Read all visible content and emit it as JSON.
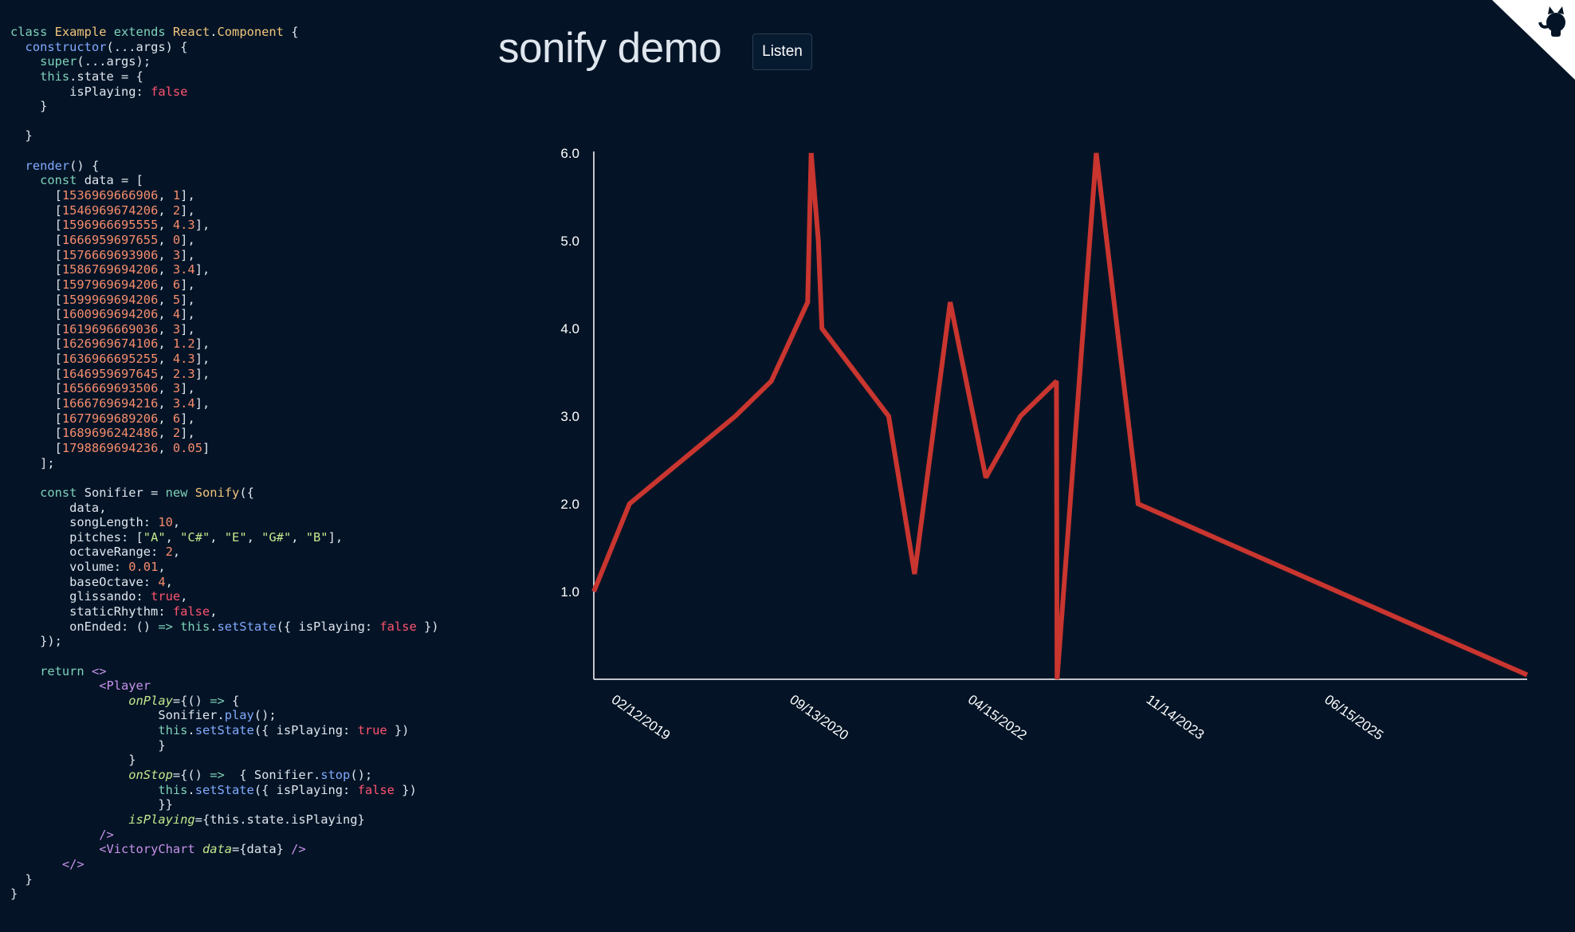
{
  "code": {
    "lines": [
      [
        [
          "class ",
          "kw"
        ],
        [
          "Example ",
          "cls"
        ],
        [
          "extends ",
          "kw"
        ],
        [
          "React",
          "cls"
        ],
        [
          ".",
          "plain"
        ],
        [
          "Component",
          "cls"
        ],
        [
          " {",
          "plain"
        ]
      ],
      [
        [
          "  ",
          "plain"
        ],
        [
          "constructor",
          "fn"
        ],
        [
          "(...args) {",
          "plain"
        ]
      ],
      [
        [
          "    ",
          "plain"
        ],
        [
          "super",
          "kw"
        ],
        [
          "(...args);",
          "plain"
        ]
      ],
      [
        [
          "    ",
          "plain"
        ],
        [
          "this",
          "kw"
        ],
        [
          ".state = {",
          "plain"
        ]
      ],
      [
        [
          "        isPlaying: ",
          "plain"
        ],
        [
          "false",
          "bool"
        ]
      ],
      [
        [
          "    }",
          "plain"
        ]
      ],
      [
        [
          "",
          "plain"
        ]
      ],
      [
        [
          "  }",
          "plain"
        ]
      ],
      [
        [
          "",
          "plain"
        ]
      ],
      [
        [
          "  ",
          "plain"
        ],
        [
          "render",
          "fn"
        ],
        [
          "() {",
          "plain"
        ]
      ],
      [
        [
          "    ",
          "plain"
        ],
        [
          "const ",
          "kw"
        ],
        [
          "data = [",
          "plain"
        ]
      ],
      [
        [
          "      [",
          "plain"
        ],
        [
          "1536969666906",
          "num"
        ],
        [
          ", ",
          "plain"
        ],
        [
          "1",
          "num"
        ],
        [
          "],",
          "plain"
        ]
      ],
      [
        [
          "      [",
          "plain"
        ],
        [
          "1546969674206",
          "num"
        ],
        [
          ", ",
          "plain"
        ],
        [
          "2",
          "num"
        ],
        [
          "],",
          "plain"
        ]
      ],
      [
        [
          "      [",
          "plain"
        ],
        [
          "1596966695555",
          "num"
        ],
        [
          ", ",
          "plain"
        ],
        [
          "4.3",
          "num"
        ],
        [
          "],",
          "plain"
        ]
      ],
      [
        [
          "      [",
          "plain"
        ],
        [
          "1666959697655",
          "num"
        ],
        [
          ", ",
          "plain"
        ],
        [
          "0",
          "num"
        ],
        [
          "],",
          "plain"
        ]
      ],
      [
        [
          "      [",
          "plain"
        ],
        [
          "1576669693906",
          "num"
        ],
        [
          ", ",
          "plain"
        ],
        [
          "3",
          "num"
        ],
        [
          "],",
          "plain"
        ]
      ],
      [
        [
          "      [",
          "plain"
        ],
        [
          "1586769694206",
          "num"
        ],
        [
          ", ",
          "plain"
        ],
        [
          "3.4",
          "num"
        ],
        [
          "],",
          "plain"
        ]
      ],
      [
        [
          "      [",
          "plain"
        ],
        [
          "1597969694206",
          "num"
        ],
        [
          ", ",
          "plain"
        ],
        [
          "6",
          "num"
        ],
        [
          "],",
          "plain"
        ]
      ],
      [
        [
          "      [",
          "plain"
        ],
        [
          "1599969694206",
          "num"
        ],
        [
          ", ",
          "plain"
        ],
        [
          "5",
          "num"
        ],
        [
          "],",
          "plain"
        ]
      ],
      [
        [
          "      [",
          "plain"
        ],
        [
          "1600969694206",
          "num"
        ],
        [
          ", ",
          "plain"
        ],
        [
          "4",
          "num"
        ],
        [
          "],",
          "plain"
        ]
      ],
      [
        [
          "      [",
          "plain"
        ],
        [
          "1619696669036",
          "num"
        ],
        [
          ", ",
          "plain"
        ],
        [
          "3",
          "num"
        ],
        [
          "],",
          "plain"
        ]
      ],
      [
        [
          "      [",
          "plain"
        ],
        [
          "1626969674106",
          "num"
        ],
        [
          ", ",
          "plain"
        ],
        [
          "1.2",
          "num"
        ],
        [
          "],",
          "plain"
        ]
      ],
      [
        [
          "      [",
          "plain"
        ],
        [
          "1636966695255",
          "num"
        ],
        [
          ", ",
          "plain"
        ],
        [
          "4.3",
          "num"
        ],
        [
          "],",
          "plain"
        ]
      ],
      [
        [
          "      [",
          "plain"
        ],
        [
          "1646959697645",
          "num"
        ],
        [
          ", ",
          "plain"
        ],
        [
          "2.3",
          "num"
        ],
        [
          "],",
          "plain"
        ]
      ],
      [
        [
          "      [",
          "plain"
        ],
        [
          "1656669693506",
          "num"
        ],
        [
          ", ",
          "plain"
        ],
        [
          "3",
          "num"
        ],
        [
          "],",
          "plain"
        ]
      ],
      [
        [
          "      [",
          "plain"
        ],
        [
          "1666769694216",
          "num"
        ],
        [
          ", ",
          "plain"
        ],
        [
          "3.4",
          "num"
        ],
        [
          "],",
          "plain"
        ]
      ],
      [
        [
          "      [",
          "plain"
        ],
        [
          "1677969689206",
          "num"
        ],
        [
          ", ",
          "plain"
        ],
        [
          "6",
          "num"
        ],
        [
          "],",
          "plain"
        ]
      ],
      [
        [
          "      [",
          "plain"
        ],
        [
          "1689696242486",
          "num"
        ],
        [
          ", ",
          "plain"
        ],
        [
          "2",
          "num"
        ],
        [
          "],",
          "plain"
        ]
      ],
      [
        [
          "      [",
          "plain"
        ],
        [
          "1798869694236",
          "num"
        ],
        [
          ", ",
          "plain"
        ],
        [
          "0.05",
          "num"
        ],
        [
          "]",
          "plain"
        ]
      ],
      [
        [
          "    ];",
          "plain"
        ]
      ],
      [
        [
          "",
          "plain"
        ]
      ],
      [
        [
          "    ",
          "plain"
        ],
        [
          "const ",
          "kw"
        ],
        [
          "Sonifier = ",
          "plain"
        ],
        [
          "new ",
          "kw"
        ],
        [
          "Sonify",
          "cls"
        ],
        [
          "({",
          "plain"
        ]
      ],
      [
        [
          "        data,",
          "plain"
        ]
      ],
      [
        [
          "        songLength: ",
          "plain"
        ],
        [
          "10",
          "num"
        ],
        [
          ",",
          "plain"
        ]
      ],
      [
        [
          "        pitches: [",
          "plain"
        ],
        [
          "\"A\"",
          "str"
        ],
        [
          ", ",
          "plain"
        ],
        [
          "\"C#\"",
          "str"
        ],
        [
          ", ",
          "plain"
        ],
        [
          "\"E\"",
          "str"
        ],
        [
          ", ",
          "plain"
        ],
        [
          "\"G#\"",
          "str"
        ],
        [
          ", ",
          "plain"
        ],
        [
          "\"B\"",
          "str"
        ],
        [
          "],",
          "plain"
        ]
      ],
      [
        [
          "        octaveRange: ",
          "plain"
        ],
        [
          "2",
          "num"
        ],
        [
          ",",
          "plain"
        ]
      ],
      [
        [
          "        volume: ",
          "plain"
        ],
        [
          "0.01",
          "num"
        ],
        [
          ",",
          "plain"
        ]
      ],
      [
        [
          "        baseOctave: ",
          "plain"
        ],
        [
          "4",
          "num"
        ],
        [
          ",",
          "plain"
        ]
      ],
      [
        [
          "        glissando: ",
          "plain"
        ],
        [
          "true",
          "bool"
        ],
        [
          ",",
          "plain"
        ]
      ],
      [
        [
          "        staticRhythm: ",
          "plain"
        ],
        [
          "false",
          "bool"
        ],
        [
          ",",
          "plain"
        ]
      ],
      [
        [
          "        onEnded: () ",
          "plain"
        ],
        [
          "=> ",
          "kw"
        ],
        [
          "this",
          "kw"
        ],
        [
          ".",
          "plain"
        ],
        [
          "setState",
          "fn"
        ],
        [
          "({ isPlaying: ",
          "plain"
        ],
        [
          "false",
          "bool"
        ],
        [
          " })",
          "plain"
        ]
      ],
      [
        [
          "    });",
          "plain"
        ]
      ],
      [
        [
          "",
          "plain"
        ]
      ],
      [
        [
          "    ",
          "plain"
        ],
        [
          "return ",
          "kw"
        ],
        [
          "<>",
          "tag"
        ]
      ],
      [
        [
          "            ",
          "plain"
        ],
        [
          "<Player",
          "tag"
        ]
      ],
      [
        [
          "                ",
          "plain"
        ],
        [
          "onPlay",
          "attr"
        ],
        [
          "={() ",
          "plain"
        ],
        [
          "=> ",
          "kw"
        ],
        [
          "{",
          "plain"
        ]
      ],
      [
        [
          "                    Sonifier.",
          "plain"
        ],
        [
          "play",
          "fn"
        ],
        [
          "();",
          "plain"
        ]
      ],
      [
        [
          "                    ",
          "plain"
        ],
        [
          "this",
          "kw"
        ],
        [
          ".",
          "plain"
        ],
        [
          "setState",
          "fn"
        ],
        [
          "({ isPlaying: ",
          "plain"
        ],
        [
          "true",
          "bool"
        ],
        [
          " })",
          "plain"
        ]
      ],
      [
        [
          "                    }",
          "plain"
        ]
      ],
      [
        [
          "                }",
          "plain"
        ]
      ],
      [
        [
          "                ",
          "plain"
        ],
        [
          "onStop",
          "attr"
        ],
        [
          "={() ",
          "plain"
        ],
        [
          "=>  ",
          "kw"
        ],
        [
          "{ Sonifier.",
          "plain"
        ],
        [
          "stop",
          "fn"
        ],
        [
          "();",
          "plain"
        ]
      ],
      [
        [
          "                    ",
          "plain"
        ],
        [
          "this",
          "kw"
        ],
        [
          ".",
          "plain"
        ],
        [
          "setState",
          "fn"
        ],
        [
          "({ isPlaying: ",
          "plain"
        ],
        [
          "false",
          "bool"
        ],
        [
          " })",
          "plain"
        ]
      ],
      [
        [
          "                    }}",
          "plain"
        ]
      ],
      [
        [
          "                ",
          "plain"
        ],
        [
          "isPlaying",
          "attr"
        ],
        [
          "={this.state.isPlaying}",
          "plain"
        ]
      ],
      [
        [
          "            ",
          "plain"
        ],
        [
          "/>",
          "tag"
        ]
      ],
      [
        [
          "            ",
          "plain"
        ],
        [
          "<VictoryChart ",
          "tag"
        ],
        [
          "data",
          "attr"
        ],
        [
          "={data} ",
          "plain"
        ],
        [
          "/>",
          "tag"
        ]
      ],
      [
        [
          "       ",
          "plain"
        ],
        [
          "</>",
          "tag"
        ]
      ],
      [
        [
          "  }",
          "plain"
        ]
      ],
      [
        [
          "}",
          "plain"
        ]
      ]
    ]
  },
  "header": {
    "title": "sonify demo",
    "listen_label": "Listen"
  },
  "colors": {
    "background": "#041426",
    "line": "#c9352f",
    "axis": "#ffffff",
    "corner": "#ffffff"
  },
  "corner_icon": "github-octocat-icon",
  "chart_data": {
    "type": "line",
    "title": "",
    "xlabel": "",
    "ylabel": "",
    "x_type": "time",
    "series": [
      {
        "name": "data",
        "points": [
          [
            1536969666906,
            1
          ],
          [
            1546969674206,
            2
          ],
          [
            1596966695555,
            4.3
          ],
          [
            1666959697655,
            0
          ],
          [
            1576669693906,
            3
          ],
          [
            1586769694206,
            3.4
          ],
          [
            1597969694206,
            6
          ],
          [
            1599969694206,
            5
          ],
          [
            1600969694206,
            4
          ],
          [
            1619696669036,
            3
          ],
          [
            1626969674106,
            1.2
          ],
          [
            1636966695255,
            4.3
          ],
          [
            1646959697645,
            2.3
          ],
          [
            1656669693506,
            3
          ],
          [
            1666769694216,
            3.4
          ],
          [
            1677969689206,
            6
          ],
          [
            1689696242486,
            2
          ],
          [
            1798869694236,
            0.05
          ]
        ]
      }
    ],
    "y_ticks": [
      1,
      2,
      3,
      4,
      5,
      6
    ],
    "y_tick_labels": [
      "1.0",
      "2.0",
      "3.0",
      "4.0",
      "5.0",
      "6.0"
    ],
    "x_ticks": [
      1549929600000,
      1599955200000,
      1649980800000,
      1700006400000,
      1750032000000
    ],
    "x_tick_labels": [
      "02/12/2019",
      "09/13/2020",
      "04/15/2022",
      "11/14/2023",
      "06/15/2025"
    ],
    "xlim": [
      1536969666906,
      1798869694236
    ],
    "ylim": [
      0,
      6
    ]
  }
}
